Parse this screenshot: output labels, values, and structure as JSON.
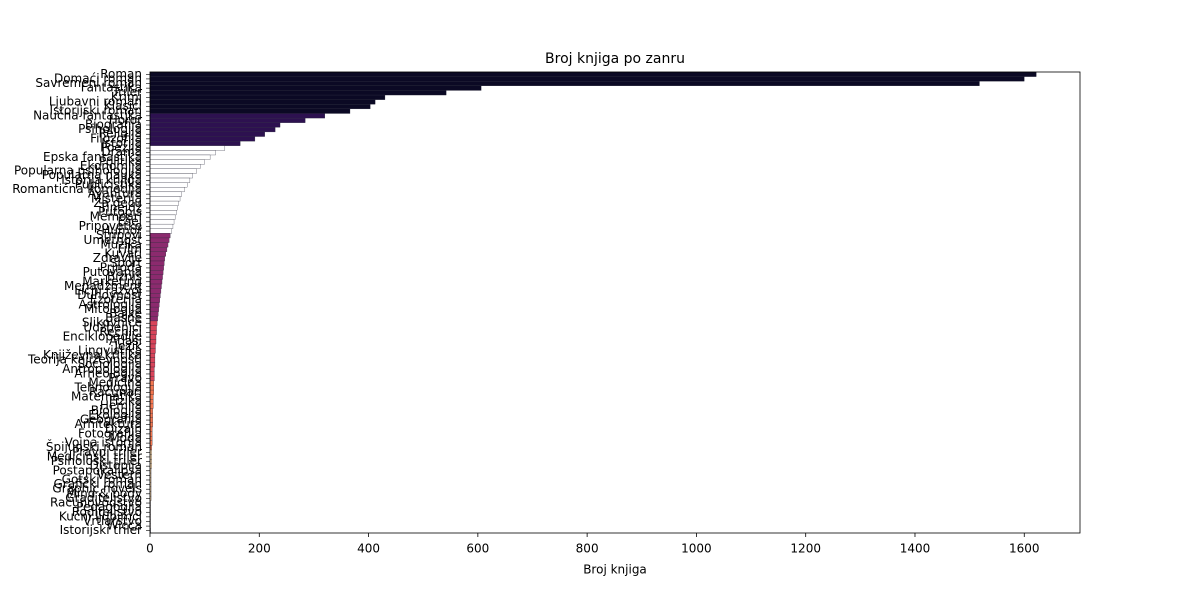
{
  "chart_data": {
    "type": "barh",
    "title": "Broj knjiga po zanru",
    "xlabel": "Broj knjiga",
    "categories": [
      "Roman",
      "Domaći roman",
      "Savremeni roman",
      "Fantastika",
      "Triler",
      "Krimi",
      "Ljubavni roman",
      "Klasici",
      "Istorijski roman",
      "Naučna fantastika",
      "Horor",
      "Biografija",
      "Psihologija",
      "Religija",
      "Filozofija",
      "Istorija",
      "Poezija",
      "Drama",
      "Epska fantastika",
      "Politika",
      "Ekonomija",
      "Popularna psihologija",
      "Popularna nauka",
      "Istorija knjiga",
      "Publicistika",
      "Romantična komedija",
      "Avantura",
      "Misterija",
      "Za decu",
      "Tinejdž",
      "Putopis",
      "Memoari",
      "Esej",
      "Pripovetke",
      "Humor",
      "Stripovi",
      "Umetnost",
      "Muzika",
      "Film",
      "Kuvari",
      "Zdravlje",
      "Sport",
      "Priroda",
      "Putovanja",
      "Biznis",
      "Marketing",
      "Menadžment",
      "Lični razvoj",
      "Duhovnost",
      "Ezoterija",
      "Astrologija",
      "Mitologija",
      "Bajke",
      "Basne",
      "Slikovnice",
      "Udžbenici",
      "Rečnici",
      "Enciklopedije",
      "Atlasi",
      "Jezik",
      "Lingvistika",
      "Književna kritika",
      "Teorija književnosti",
      "Sociologija",
      "Antropologija",
      "Arheologija",
      "Pravo",
      "Medicina",
      "Tehnologija",
      "Računari",
      "Matematika",
      "Fizika",
      "Hemija",
      "Biologija",
      "Ekologija",
      "Geografija",
      "Arhitektura",
      "Dizajn",
      "Fotografija",
      "Moda",
      "Vojna istorija",
      "Špijunski roman",
      "Pravni triler",
      "Medicinski triler",
      "Psihološki triler",
      "Distopija",
      "Postapokalipsa",
      "Vestern",
      "Gotski roman",
      "Grafički roman",
      "Graphic novels",
      "Mind & body",
      "Graditeljstvo",
      "Računovodstvo",
      "Pedagogija",
      "Roditeljstvo",
      "Kućni ljubimci",
      "Vrtlarstvo",
      "Wicca",
      "Istorijski triler"
    ],
    "values": [
      1622,
      1600,
      1518,
      606,
      542,
      430,
      412,
      403,
      366,
      320,
      284,
      238,
      229,
      210,
      192,
      165,
      137,
      120,
      110,
      100,
      92,
      85,
      78,
      73,
      68,
      63,
      58,
      55,
      52,
      50,
      48,
      46,
      44,
      42,
      40,
      37,
      35,
      33,
      31,
      29,
      27,
      26,
      25,
      24,
      23,
      22,
      21,
      20,
      19,
      18,
      17,
      16,
      15,
      14,
      13,
      12,
      12,
      11,
      11,
      10,
      10,
      9,
      9,
      9,
      8,
      8,
      8,
      7,
      7,
      7,
      6,
      6,
      6,
      5,
      5,
      5,
      5,
      4,
      4,
      4,
      4,
      3,
      3,
      3,
      3,
      3,
      2,
      2,
      2,
      2,
      2,
      2,
      2,
      1,
      1,
      1,
      1,
      1,
      1,
      1
    ],
    "colors": [
      "#0b0924",
      "#0b0924",
      "#0b0924",
      "#0b0924",
      "#0b0924",
      "#0b0924",
      "#0b0924",
      "#0b0924",
      "#0b0924",
      "#2d1150",
      "#2d1150",
      "#2d1150",
      "#2d1150",
      "#2d1150",
      "#2d1150",
      "#2d1150",
      "#ffffff",
      "#ffffff",
      "#ffffff",
      "#ffffff",
      "#ffffff",
      "#ffffff",
      "#ffffff",
      "#ffffff",
      "#ffffff",
      "#ffffff",
      "#ffffff",
      "#ffffff",
      "#ffffff",
      "#ffffff",
      "#ffffff",
      "#ffffff",
      "#ffffff",
      "#ffffff",
      "#ffffff",
      "#8c2a6e",
      "#8c2a6e",
      "#8c2a6e",
      "#8c2a6e",
      "#8c2a6e",
      "#8c2a6e",
      "#8c2a6e",
      "#8c2a6e",
      "#8c2a6e",
      "#8c2a6e",
      "#8c2a6e",
      "#8c2a6e",
      "#8c2a6e",
      "#8c2a6e",
      "#8c2a6e",
      "#8c2a6e",
      "#8c2a6e",
      "#8c2a6e",
      "#8c2a6e",
      "#d8445a",
      "#d8445a",
      "#d8445a",
      "#d8445a",
      "#d8445a",
      "#d8445a",
      "#d8445a",
      "#d8445a",
      "#d8445a",
      "#d8445a",
      "#d8445a",
      "#d8445a",
      "#d8445a",
      "#f3764f",
      "#f3764f",
      "#f3764f",
      "#f3764f",
      "#f3764f",
      "#f3764f",
      "#f3764f",
      "#f3764f",
      "#f3764f",
      "#f3764f",
      "#f3764f",
      "#f3764f",
      "#f3764f",
      "#f3764f",
      "#f3764f",
      "#fdd9a5",
      "#fdd9a5",
      "#fdd9a5",
      "#fdd9a5",
      "#fdd9a5",
      "#fdd9a5",
      "#fdd9a5",
      "#fdd9a5",
      "#fdd9a5",
      "#fdd9a5",
      "#fdd9a5",
      "#fdd9a5",
      "#fdd9a5",
      "#fdd9a5",
      "#fdd9a5",
      "#fdd9a5",
      "#fdd9a5"
    ],
    "edgecolor": "#2a2a3a",
    "xlim": [
      0,
      1702
    ],
    "xticks": [
      0,
      200,
      400,
      600,
      800,
      1000,
      1200,
      1400,
      1600
    ]
  }
}
